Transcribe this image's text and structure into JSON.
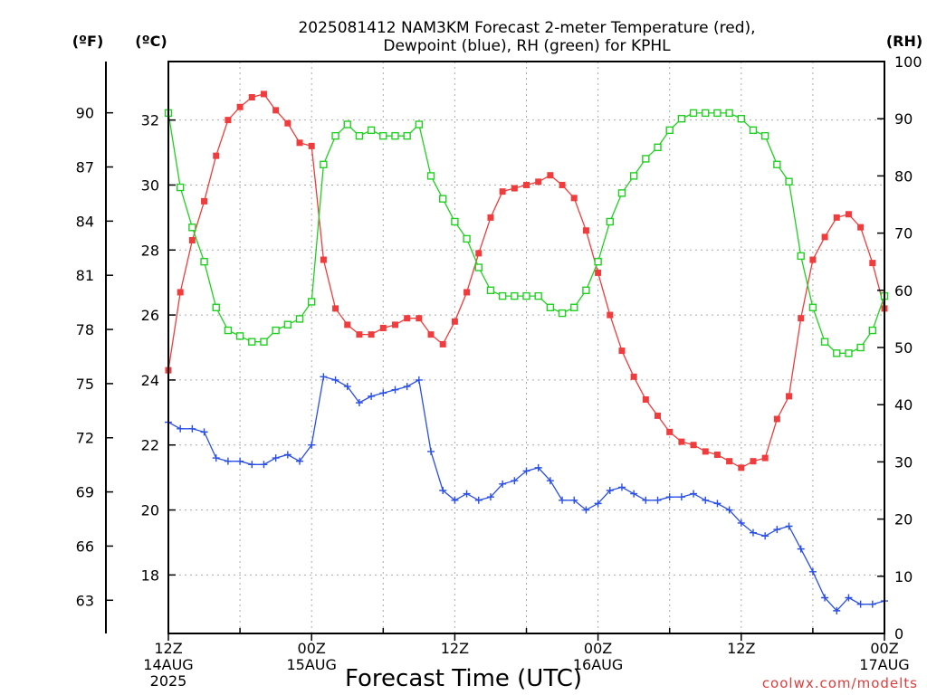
{
  "chart_data": {
    "type": "line",
    "title_line1": "2025081412 NAM3KM Forecast 2-meter Temperature (red),",
    "title_line2": "Dewpoint (blue), RH (green) for KPHL",
    "xlabel": "Forecast Time (UTC)",
    "left_outer_axis_label": "(ºF)",
    "left_inner_axis_label": "(ºC)",
    "right_axis_label": "(RH)",
    "credit": "coolwx.com/modelts",
    "x_range_hours": [
      0,
      60
    ],
    "x_ticks": [
      {
        "hour": 0,
        "lines": [
          "12Z",
          "14AUG",
          "2025"
        ]
      },
      {
        "hour": 12,
        "lines": [
          "00Z",
          "15AUG"
        ]
      },
      {
        "hour": 24,
        "lines": [
          "12Z"
        ]
      },
      {
        "hour": 36,
        "lines": [
          "00Z",
          "16AUG"
        ]
      },
      {
        "hour": 48,
        "lines": [
          "12Z"
        ]
      },
      {
        "hour": 60,
        "lines": [
          "00Z",
          "17AUG"
        ]
      }
    ],
    "celsius_ylim": [
      16.2,
      33.8
    ],
    "celsius_ticks": [
      18,
      20,
      22,
      24,
      26,
      28,
      30,
      32
    ],
    "fahrenheit_ticks": [
      63,
      66,
      69,
      72,
      75,
      78,
      81,
      84,
      87,
      90
    ],
    "rh_ylim": [
      0,
      100
    ],
    "rh_ticks": [
      0,
      10,
      20,
      30,
      40,
      50,
      60,
      70,
      80,
      90,
      100
    ],
    "grid": true,
    "colors": {
      "temperature": "#f03c3c",
      "dewpoint": "#2a4ee8",
      "rh": "#20d020"
    },
    "series": [
      {
        "key": "temperature",
        "axis": "celsius",
        "marker": "filled-square",
        "values": [
          24.3,
          26.7,
          28.3,
          29.5,
          30.9,
          32.0,
          32.4,
          32.7,
          32.8,
          32.3,
          31.9,
          31.3,
          31.2,
          27.7,
          26.2,
          25.7,
          25.4,
          25.4,
          25.6,
          25.7,
          25.9,
          25.9,
          25.4,
          25.1,
          25.8,
          26.7,
          27.9,
          29.0,
          29.8,
          29.9,
          30.0,
          30.1,
          30.3,
          30.0,
          29.6,
          28.6,
          27.3,
          26.0,
          24.9,
          24.1,
          23.4,
          22.9,
          22.4,
          22.1,
          22.0,
          21.8,
          21.7,
          21.5,
          21.3,
          21.5,
          21.6,
          22.8,
          23.5,
          25.9,
          27.7,
          28.4,
          29.0,
          29.1,
          28.7,
          27.6,
          26.2
        ]
      },
      {
        "key": "dewpoint",
        "axis": "celsius",
        "marker": "plus",
        "values": [
          22.7,
          22.5,
          22.5,
          22.4,
          21.6,
          21.5,
          21.5,
          21.4,
          21.4,
          21.6,
          21.7,
          21.5,
          22.0,
          24.1,
          24.0,
          23.8,
          23.3,
          23.5,
          23.6,
          23.7,
          23.8,
          24.0,
          21.8,
          20.6,
          20.3,
          20.5,
          20.3,
          20.4,
          20.8,
          20.9,
          21.2,
          21.3,
          20.9,
          20.3,
          20.3,
          20.0,
          20.2,
          20.6,
          20.7,
          20.5,
          20.3,
          20.3,
          20.4,
          20.4,
          20.5,
          20.3,
          20.2,
          20.0,
          19.6,
          19.3,
          19.2,
          19.4,
          19.5,
          18.8,
          18.1,
          17.3,
          16.9,
          17.3,
          17.1,
          17.1,
          17.2
        ]
      },
      {
        "key": "rh",
        "axis": "rh",
        "marker": "open-square",
        "values": [
          91,
          78,
          71,
          65,
          57,
          53,
          52,
          51,
          51,
          53,
          54,
          55,
          58,
          82,
          87,
          89,
          87,
          88,
          87,
          87,
          87,
          89,
          80,
          76,
          72,
          69,
          64,
          60,
          59,
          59,
          59,
          59,
          57,
          56,
          57,
          60,
          65,
          72,
          77,
          80,
          83,
          85,
          88,
          90,
          91,
          91,
          91,
          91,
          90,
          88,
          87,
          82,
          79,
          66,
          57,
          51,
          49,
          49,
          50,
          53,
          59
        ]
      }
    ]
  }
}
